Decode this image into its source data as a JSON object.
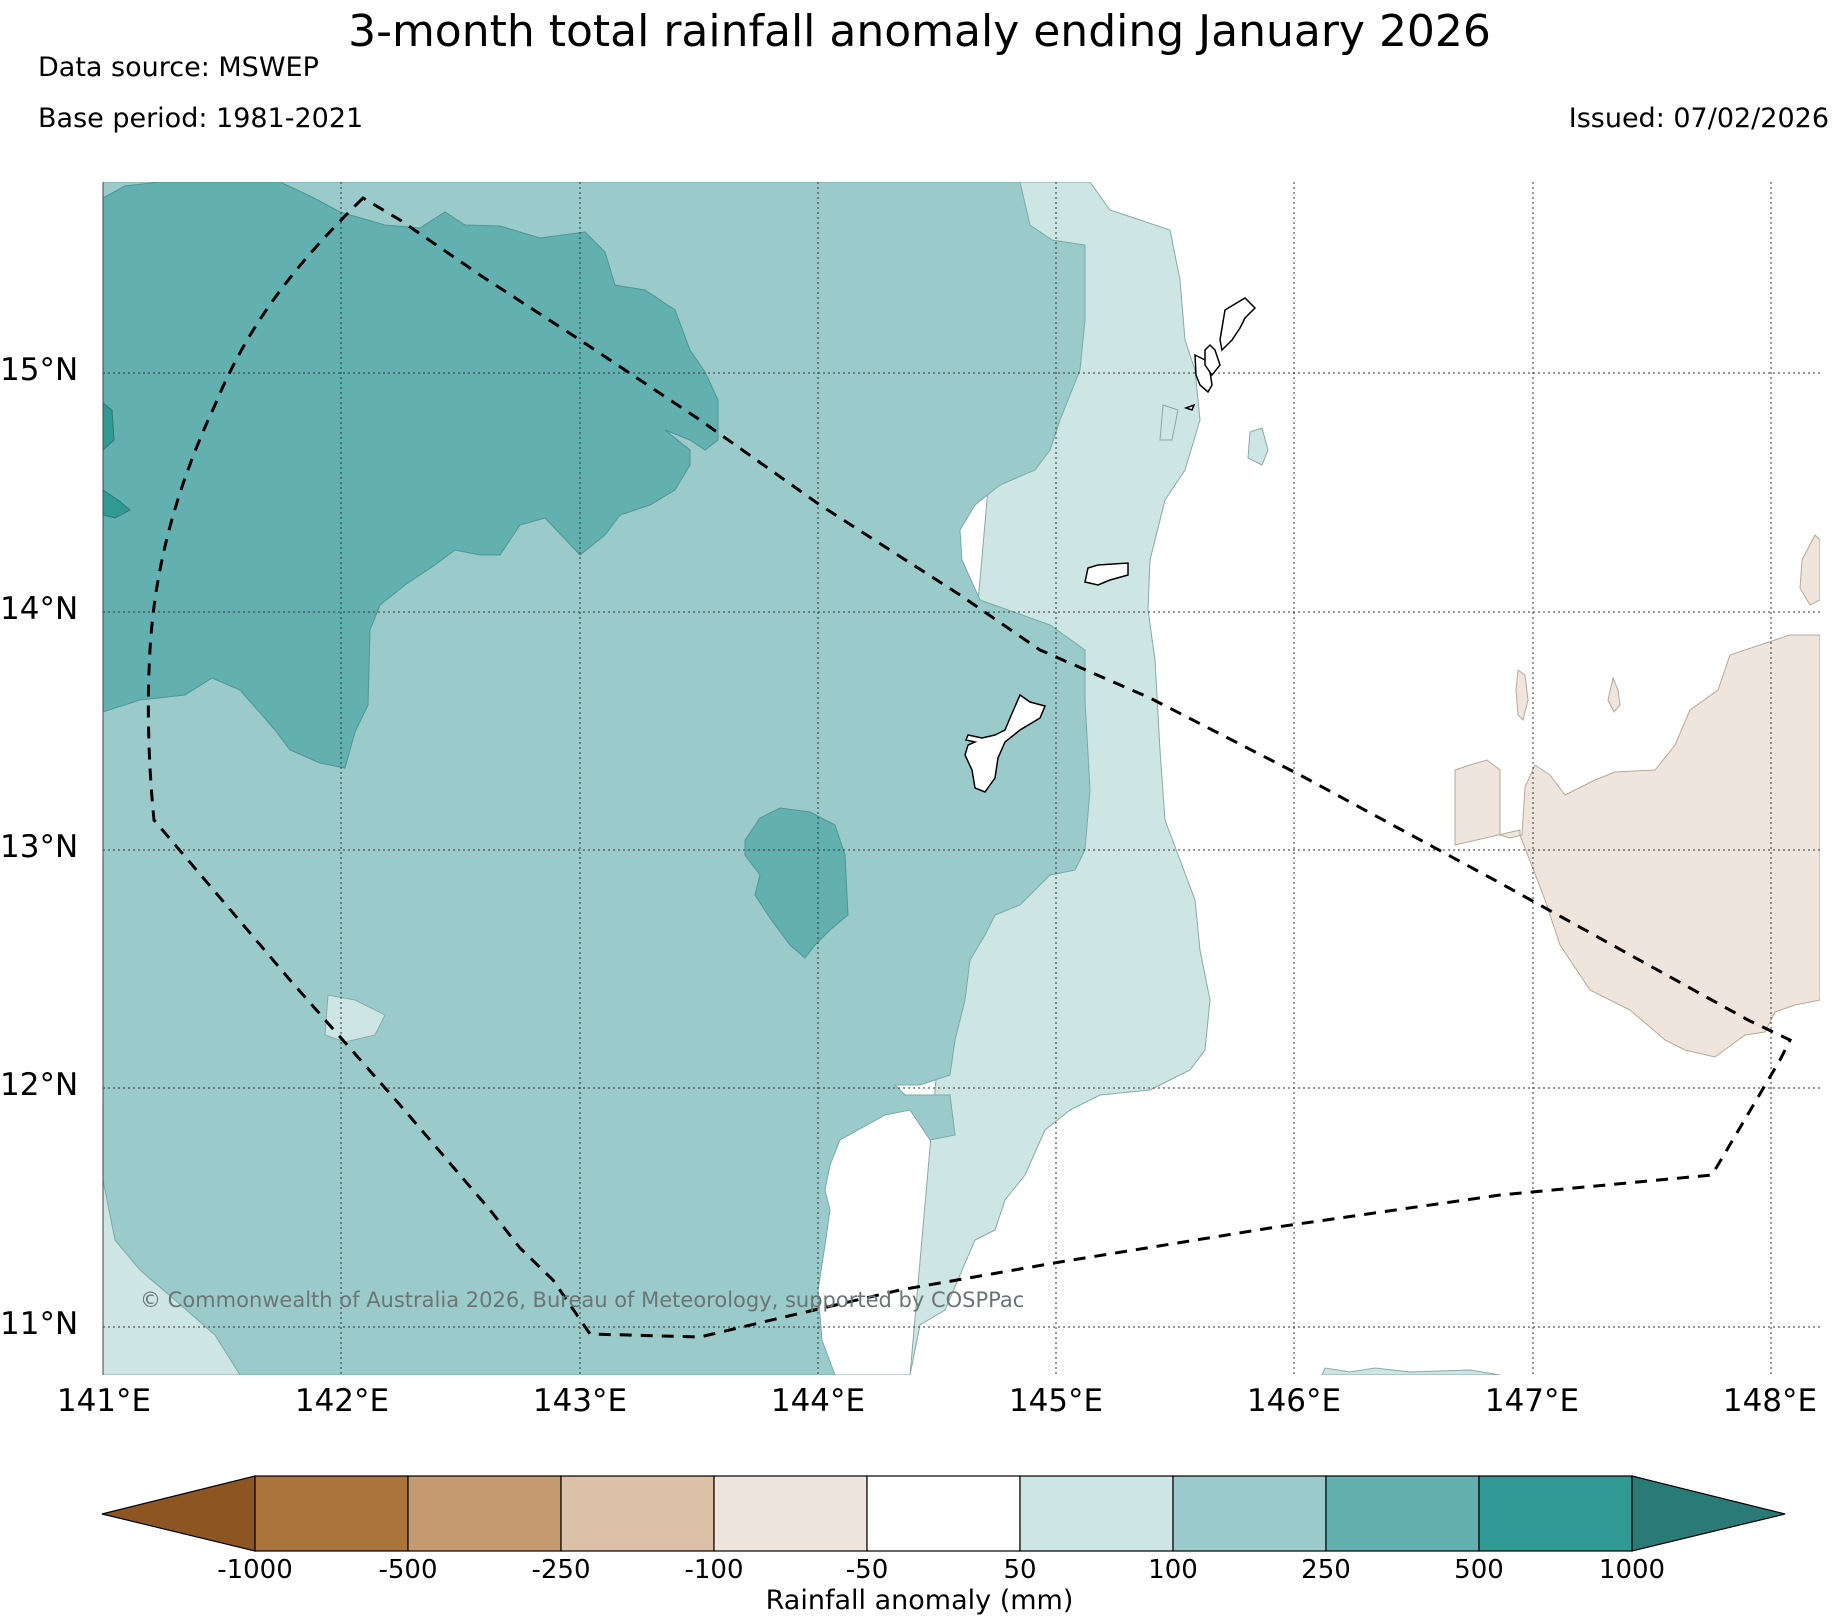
{
  "header": {
    "title": "3-month total rainfall anomaly ending January 2026",
    "data_source": "Data source: MSWEP",
    "base_period": "Base period: 1981-2021",
    "issued": "Issued: 07/02/2026"
  },
  "map": {
    "lat_labels": [
      "15°N",
      "14°N",
      "13°N",
      "12°N",
      "11°N"
    ],
    "lon_labels": [
      "141°E",
      "142°E",
      "143°E",
      "144°E",
      "145°E",
      "146°E",
      "147°E",
      "148°E"
    ],
    "copyright": "© Commonwealth of Australia 2026, Bureau of Meteorology, supported by COSPPac",
    "region_outline": "dashed"
  },
  "colorbar": {
    "label": "Rainfall anomaly (mm)",
    "ticks": [
      "-1000",
      "-500",
      "-250",
      "-100",
      "-50",
      "50",
      "100",
      "250",
      "500",
      "1000"
    ],
    "colors": {
      "below_min": "#8c5521",
      "c1": "#aa743c",
      "c2": "#c49a71",
      "c3": "#dbc1a7",
      "c4": "#f0e5dc",
      "c5": "#ffffff",
      "c6": "#cde5e3",
      "c7": "#9acbca",
      "c8": "#63b0b0",
      "c9": "#319993",
      "above_max": "#2a7b77"
    }
  }
}
